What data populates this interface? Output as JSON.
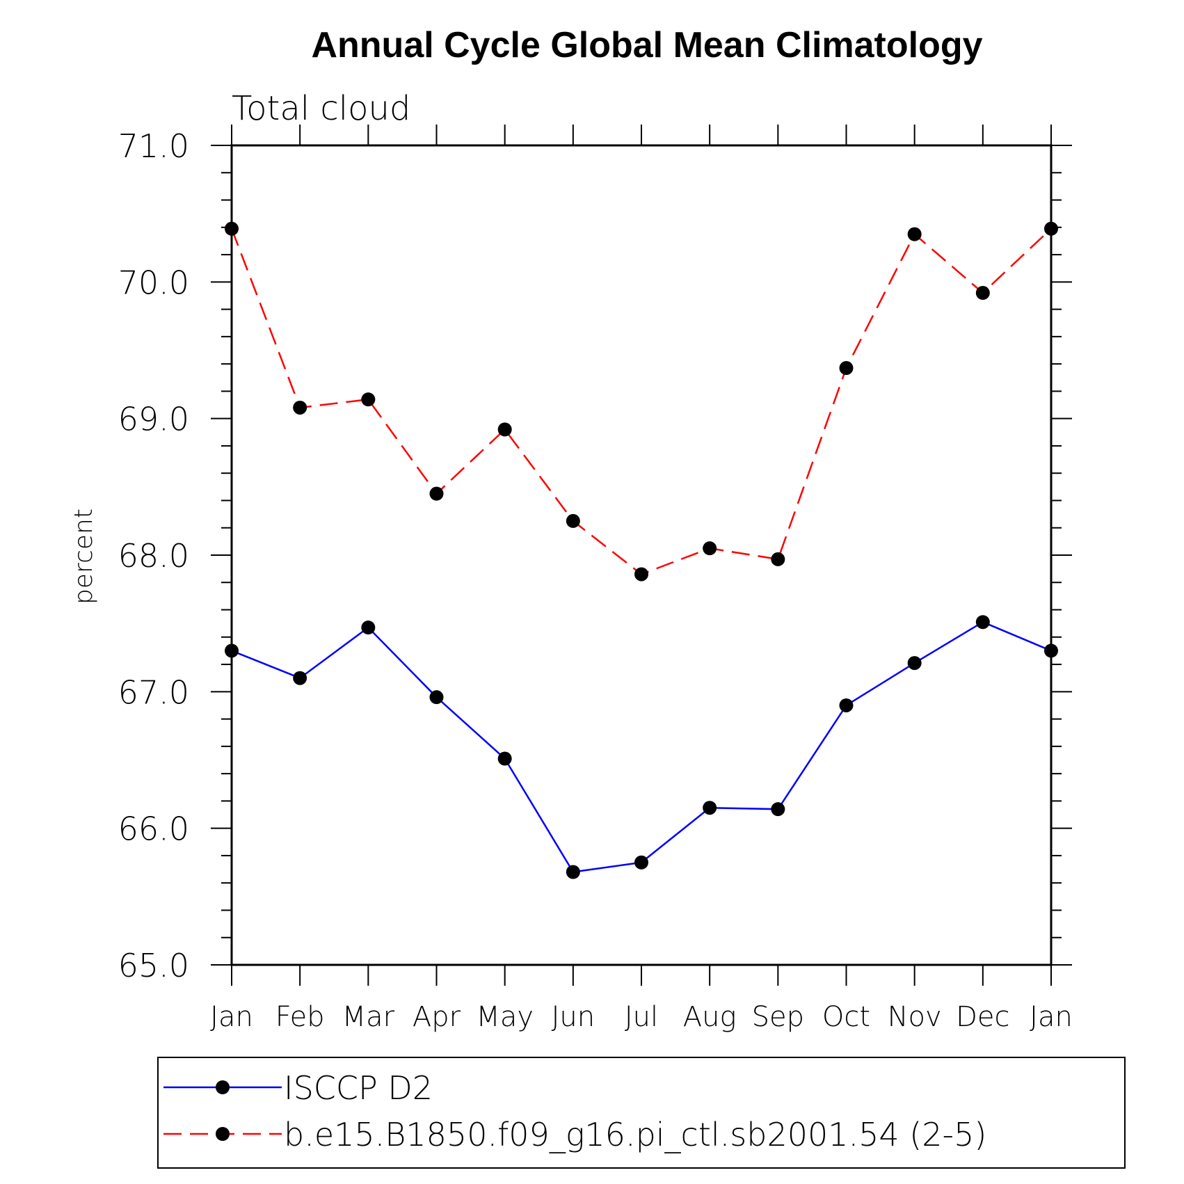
{
  "chart_data": {
    "type": "line",
    "title": "Annual Cycle Global Mean Climatology",
    "subtitle": "Total cloud",
    "xlabel": "",
    "ylabel": "percent",
    "categories": [
      "Jan",
      "Feb",
      "Mar",
      "Apr",
      "May",
      "Jun",
      "Jul",
      "Aug",
      "Sep",
      "Oct",
      "Nov",
      "Dec",
      "Jan"
    ],
    "ylim": [
      65.0,
      71.0
    ],
    "yticks": [
      "65.0",
      "66.0",
      "67.0",
      "68.0",
      "69.0",
      "70.0",
      "71.0"
    ],
    "grid": false,
    "legend_position": "bottom",
    "series": [
      {
        "name": "ISCCP D2",
        "color": "#0000ff",
        "line_style": "solid",
        "marker": "filled-circle",
        "values": [
          67.3,
          67.1,
          67.47,
          66.96,
          66.51,
          65.68,
          65.75,
          66.15,
          66.14,
          66.9,
          67.21,
          67.51,
          67.3
        ]
      },
      {
        "name": "b.e15.B1850.f09_g16.pi_ctl.sb2001.54 (2-5)",
        "color": "#ff0000",
        "line_style": "dashed",
        "marker": "filled-circle",
        "values": [
          70.39,
          69.08,
          69.14,
          68.45,
          68.92,
          68.25,
          67.86,
          68.05,
          67.97,
          69.37,
          70.35,
          69.92,
          70.39
        ]
      }
    ]
  }
}
